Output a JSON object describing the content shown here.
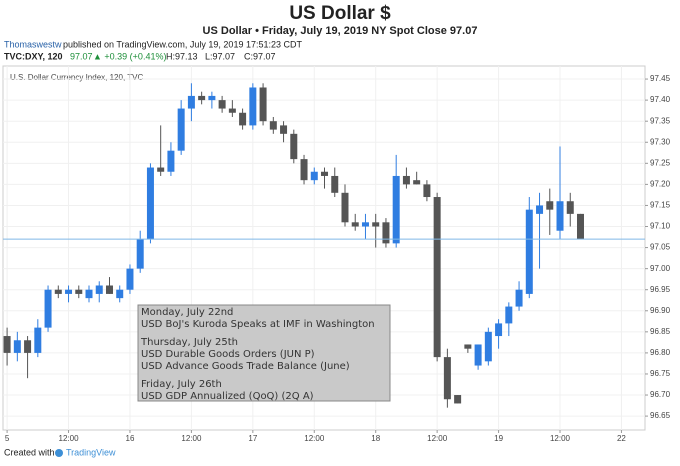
{
  "header": {
    "title": "US Dollar $",
    "subtitle": "US Dollar • Friday, July 19, 2019 NY Spot Close 97.07",
    "publisher": "Thomaswestw",
    "published": "published on TradingView.com, July 19, 2019 17:51:23 CDT",
    "symbol": "TVC:DXY, 120",
    "last": "97.07",
    "change": "▲ +0.39 (+0.41%)",
    "high": "H:97.13",
    "low": "L:97.07",
    "close": "C:97.07"
  },
  "footer": {
    "created": "Created with",
    "brand": "TradingView"
  },
  "chart_data": {
    "type": "candlestick",
    "title": "U.S. Dollar Currency Index, 120, TVC",
    "up_color": "#2f7de1",
    "down_color": "#555555",
    "grid": true,
    "price_line_color": "#7fb8e6",
    "open": [
      96.84,
      96.8,
      96.83,
      96.8,
      96.86,
      96.95,
      96.94,
      96.95,
      96.93,
      96.94,
      96.96,
      96.93,
      96.95,
      97.0,
      97.07,
      97.24,
      97.23,
      97.28,
      97.38,
      97.41,
      97.4,
      97.4,
      97.38,
      97.37,
      97.34,
      97.43,
      97.35,
      97.34,
      97.32,
      97.26,
      97.21,
      97.23,
      97.22,
      97.18,
      97.11,
      97.1,
      97.11,
      97.11,
      97.06,
      97.22,
      97.21,
      97.2,
      97.17,
      96.79,
      96.7,
      96.82,
      96.77,
      96.78,
      96.84,
      96.87,
      96.91,
      96.94,
      97.13,
      97.16,
      97.09,
      97.16,
      97.13
    ],
    "high": [
      96.86,
      96.85,
      96.84,
      96.88,
      96.96,
      96.96,
      96.96,
      96.96,
      96.96,
      96.97,
      96.98,
      96.96,
      97.01,
      97.09,
      97.25,
      97.34,
      97.3,
      97.4,
      97.44,
      97.42,
      97.42,
      97.41,
      97.4,
      97.38,
      97.44,
      97.44,
      97.36,
      97.35,
      97.33,
      97.27,
      97.24,
      97.24,
      97.24,
      97.2,
      97.13,
      97.13,
      97.13,
      97.12,
      97.27,
      97.24,
      97.23,
      97.21,
      97.18,
      96.81,
      96.7,
      96.82,
      96.82,
      96.86,
      96.88,
      96.92,
      96.97,
      97.17,
      97.18,
      97.19,
      97.29,
      97.18,
      97.13
    ],
    "low": [
      96.77,
      96.78,
      96.74,
      96.79,
      96.85,
      96.93,
      96.92,
      96.93,
      96.92,
      96.92,
      96.94,
      96.92,
      96.94,
      96.99,
      97.06,
      97.22,
      97.22,
      97.27,
      97.35,
      97.39,
      97.38,
      97.37,
      97.36,
      97.33,
      97.33,
      97.34,
      97.32,
      97.3,
      97.25,
      97.2,
      97.2,
      97.19,
      97.17,
      97.1,
      97.09,
      97.07,
      97.05,
      97.05,
      97.05,
      97.19,
      97.2,
      97.16,
      96.78,
      96.67,
      96.68,
      96.8,
      96.76,
      96.77,
      96.81,
      96.84,
      96.9,
      96.93,
      97.0,
      97.08,
      97.07,
      97.1,
      97.07
    ],
    "close": [
      96.8,
      96.83,
      96.8,
      96.86,
      96.95,
      96.94,
      96.95,
      96.94,
      96.95,
      96.96,
      96.94,
      96.95,
      97.0,
      97.07,
      97.24,
      97.23,
      97.28,
      97.38,
      97.41,
      97.4,
      97.41,
      97.38,
      97.37,
      97.34,
      97.43,
      97.35,
      97.33,
      97.32,
      97.26,
      97.21,
      97.23,
      97.22,
      97.18,
      97.11,
      97.1,
      97.11,
      97.1,
      97.06,
      97.22,
      97.2,
      97.2,
      97.17,
      96.79,
      96.69,
      96.68,
      96.81,
      96.82,
      96.85,
      96.87,
      96.91,
      96.95,
      97.14,
      97.15,
      97.14,
      97.16,
      97.13,
      97.07
    ],
    "xlim": [
      -0.4,
      62.3
    ],
    "xticks": [
      {
        "value": 0,
        "label": "5"
      },
      {
        "value": 6,
        "label": "12:00"
      },
      {
        "value": 12,
        "label": "16"
      },
      {
        "value": 18,
        "label": "12:00"
      },
      {
        "value": 24,
        "label": "17"
      },
      {
        "value": 30,
        "label": "12:00"
      },
      {
        "value": 36,
        "label": "18"
      },
      {
        "value": 42,
        "label": "12:00"
      },
      {
        "value": 48,
        "label": "19"
      },
      {
        "value": 54,
        "label": "12:00"
      },
      {
        "value": 60,
        "label": "22"
      }
    ],
    "ylim": [
      96.617,
      97.481
    ],
    "yticks": [
      96.65,
      {
        "value": 96.7,
        "label": "96.70"
      },
      96.75,
      {
        "value": 96.8,
        "label": "96.80"
      },
      96.85,
      {
        "value": 96.9,
        "label": "96.90"
      },
      96.95,
      {
        "value": 97,
        "label": "97.00"
      },
      97.05,
      {
        "value": 97.1,
        "label": "97.10"
      },
      97.15,
      {
        "value": 97.2,
        "label": "97.20"
      },
      97.25,
      {
        "value": 97.3,
        "label": "97.30"
      },
      97.35,
      {
        "value": 97.4,
        "label": "97.40"
      },
      97.45
    ],
    "annotation": [
      "Monday, July 22nd",
      "USD BoJ's Kuroda Speaks at IMF in Washington",
      "Thursday, July 25th",
      "USD Durable Goods Orders (JUN P)",
      "USD Advance Goods Trade Balance (June)",
      "Friday, July 26th",
      "USD GDP Annualized (QoQ) (2Q A)"
    ]
  }
}
